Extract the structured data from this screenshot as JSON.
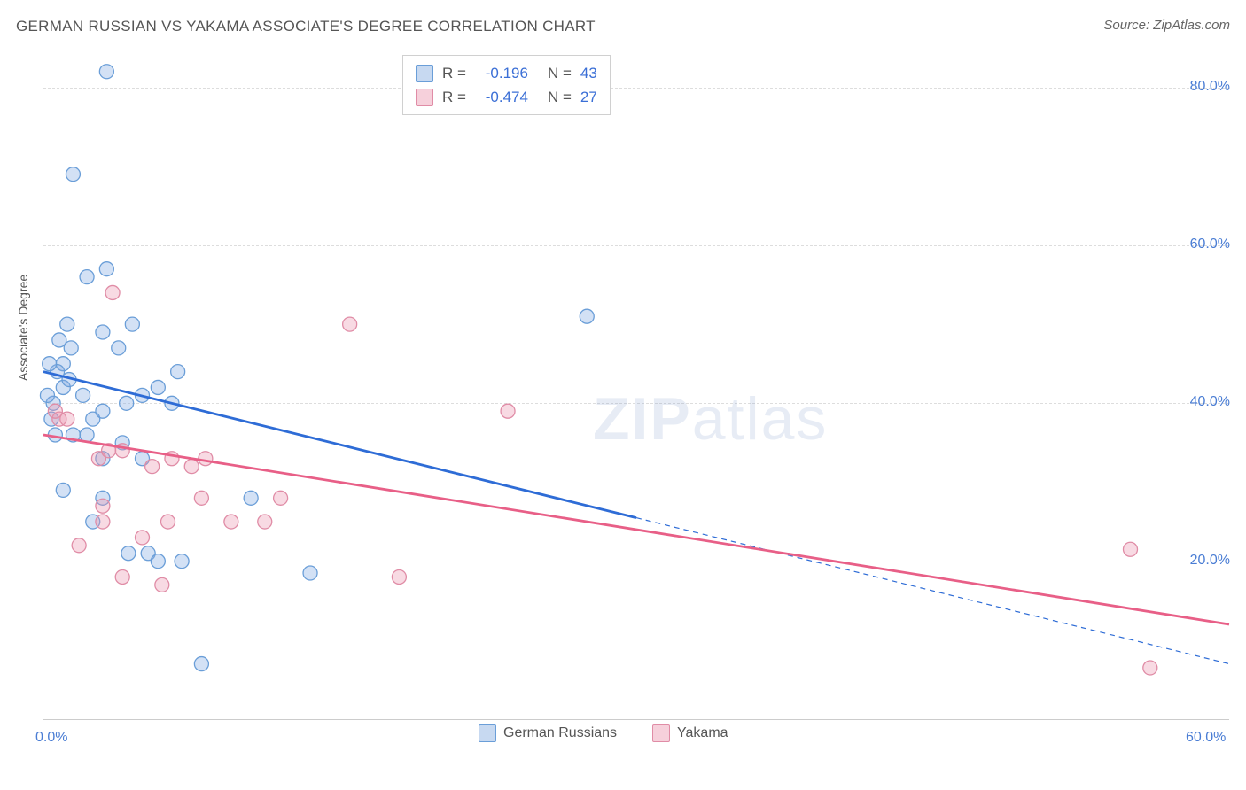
{
  "title": "GERMAN RUSSIAN VS YAKAMA ASSOCIATE'S DEGREE CORRELATION CHART",
  "source_label": "Source: ",
  "source_name": "ZipAtlas.com",
  "ylabel": "Associate's Degree",
  "watermark_a": "ZIP",
  "watermark_b": "atlas",
  "chart": {
    "type": "scatter",
    "xlim": [
      0,
      60
    ],
    "ylim": [
      0,
      85
    ],
    "xticks": [
      {
        "v": 0,
        "label": "0.0%"
      },
      {
        "v": 60,
        "label": "60.0%"
      }
    ],
    "yticks": [
      {
        "v": 20,
        "label": "20.0%"
      },
      {
        "v": 40,
        "label": "40.0%"
      },
      {
        "v": 60,
        "label": "60.0%"
      },
      {
        "v": 80,
        "label": "80.0%"
      }
    ],
    "gridlines_y": [
      20,
      40,
      60,
      80
    ],
    "background_color": "#ffffff",
    "grid_color": "#dddddd",
    "marker_radius": 8,
    "marker_stroke_width": 1.3,
    "trend_line_width": 2.8,
    "series": [
      {
        "name": "German Russians",
        "fill": "rgba(130,170,225,0.35)",
        "stroke": "#6a9ed8",
        "line_color": "#2e6cd6",
        "line_solid": {
          "x1": 0,
          "y1": 44,
          "x2": 30,
          "y2": 25.5
        },
        "line_dashed": {
          "x1": 30,
          "y1": 25.5,
          "x2": 60,
          "y2": 7
        },
        "points": [
          [
            3.2,
            82
          ],
          [
            1.5,
            69
          ],
          [
            0.8,
            48
          ],
          [
            1.2,
            50
          ],
          [
            2.2,
            56
          ],
          [
            3.2,
            57
          ],
          [
            3.0,
            49
          ],
          [
            3.8,
            47
          ],
          [
            4.5,
            50
          ],
          [
            1.0,
            45
          ],
          [
            1.4,
            47
          ],
          [
            1.0,
            42
          ],
          [
            1.3,
            43
          ],
          [
            0.7,
            44
          ],
          [
            2.0,
            41
          ],
          [
            2.5,
            38
          ],
          [
            3.0,
            39
          ],
          [
            4.2,
            40
          ],
          [
            5.0,
            41
          ],
          [
            5.8,
            42
          ],
          [
            6.5,
            40
          ],
          [
            6.8,
            44
          ],
          [
            3.0,
            33
          ],
          [
            5.0,
            33
          ],
          [
            3.0,
            28
          ],
          [
            1.0,
            29
          ],
          [
            2.5,
            25
          ],
          [
            4.3,
            21
          ],
          [
            5.3,
            21
          ],
          [
            5.8,
            20
          ],
          [
            7.0,
            20
          ],
          [
            10.5,
            28
          ],
          [
            8.0,
            7
          ],
          [
            27.5,
            51
          ],
          [
            1.5,
            36
          ],
          [
            2.2,
            36
          ],
          [
            0.6,
            36
          ],
          [
            0.4,
            38
          ],
          [
            0.5,
            40
          ],
          [
            0.2,
            41
          ],
          [
            0.3,
            45
          ],
          [
            4.0,
            35
          ],
          [
            13.5,
            18.5
          ]
        ]
      },
      {
        "name": "Yakama",
        "fill": "rgba(235,150,175,0.35)",
        "stroke": "#e08ca6",
        "line_color": "#e85f87",
        "line_solid": {
          "x1": 0,
          "y1": 36,
          "x2": 60,
          "y2": 12
        },
        "line_dashed": null,
        "points": [
          [
            0.8,
            38
          ],
          [
            1.2,
            38
          ],
          [
            0.6,
            39
          ],
          [
            2.8,
            33
          ],
          [
            3.3,
            34
          ],
          [
            4.0,
            34
          ],
          [
            5.5,
            32
          ],
          [
            6.5,
            33
          ],
          [
            7.5,
            32
          ],
          [
            8.2,
            33
          ],
          [
            8.0,
            28
          ],
          [
            3.0,
            27
          ],
          [
            1.8,
            22
          ],
          [
            3.0,
            25
          ],
          [
            5.0,
            23
          ],
          [
            6.3,
            25
          ],
          [
            9.5,
            25
          ],
          [
            11.2,
            25
          ],
          [
            12.0,
            28
          ],
          [
            18.0,
            18
          ],
          [
            15.5,
            50
          ],
          [
            23.5,
            39
          ],
          [
            4.0,
            18
          ],
          [
            6.0,
            17
          ],
          [
            55.0,
            21.5
          ],
          [
            56.0,
            6.5
          ],
          [
            3.5,
            54
          ]
        ]
      }
    ]
  },
  "legend_top": {
    "rows": [
      {
        "swatch_fill": "rgba(130,170,225,0.45)",
        "swatch_stroke": "#6a9ed8",
        "r_label": "R =",
        "r_val": "-0.196",
        "n_label": "N =",
        "n_val": "43"
      },
      {
        "swatch_fill": "rgba(235,150,175,0.45)",
        "swatch_stroke": "#e08ca6",
        "r_label": "R =",
        "r_val": "-0.474",
        "n_label": "N =",
        "n_val": "27"
      }
    ]
  },
  "legend_bottom": {
    "items": [
      {
        "swatch_fill": "rgba(130,170,225,0.45)",
        "swatch_stroke": "#6a9ed8",
        "label": "German Russians"
      },
      {
        "swatch_fill": "rgba(235,150,175,0.45)",
        "swatch_stroke": "#e08ca6",
        "label": "Yakama"
      }
    ]
  }
}
